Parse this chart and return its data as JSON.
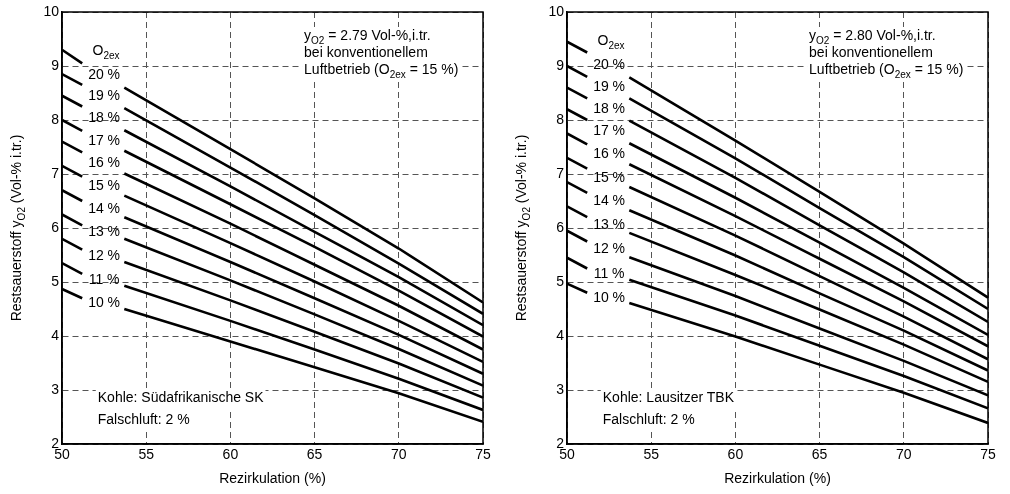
{
  "chart_data": [
    {
      "type": "line",
      "xlabel": "Rezirkulation (%)",
      "ylabel": "Restsauerstoff y$_{O2}$ (Vol-% i.tr.)",
      "x": [
        50,
        51.2,
        52.5,
        53.7,
        60,
        65,
        70,
        75
      ],
      "series": [
        {
          "name": "20 %",
          "color": "#000000",
          "values": [
            9.3,
            9.05,
            null,
            8.6,
            7.46,
            6.55,
            5.62,
            4.62
          ]
        },
        {
          "name": "19 %",
          "color": "#000000",
          "values": [
            8.85,
            8.65,
            null,
            8.22,
            7.12,
            6.24,
            5.34,
            4.41
          ]
        },
        {
          "name": "18 %",
          "color": "#000000",
          "values": [
            8.45,
            8.25,
            null,
            7.81,
            6.77,
            5.93,
            5.09,
            4.2
          ]
        },
        {
          "name": "17 %",
          "color": "#000000",
          "values": [
            8.0,
            7.8,
            null,
            7.43,
            6.44,
            5.65,
            4.84,
            3.99
          ]
        },
        {
          "name": "16 %",
          "color": "#000000",
          "values": [
            7.6,
            7.4,
            null,
            7.01,
            6.08,
            5.32,
            4.56,
            3.75
          ]
        },
        {
          "name": "15 %",
          "color": "#000000",
          "values": [
            7.15,
            6.95,
            null,
            6.6,
            5.72,
            5.01,
            4.28,
            3.52
          ]
        },
        {
          "name": "14 %",
          "color": "#000000",
          "values": [
            6.7,
            6.5,
            null,
            6.2,
            5.37,
            4.7,
            4.02,
            3.3
          ]
        },
        {
          "name": "13 %",
          "color": "#000000",
          "values": [
            6.25,
            6.05,
            null,
            5.8,
            5.03,
            4.4,
            3.76,
            3.08
          ]
        },
        {
          "name": "12 %",
          "color": "#000000",
          "values": [
            5.8,
            5.6,
            null,
            5.37,
            4.66,
            4.08,
            3.49,
            2.86
          ]
        },
        {
          "name": "11 %",
          "color": "#000000",
          "values": [
            5.35,
            5.15,
            null,
            4.93,
            4.28,
            3.75,
            3.21,
            2.63
          ]
        },
        {
          "name": "10 %",
          "color": "#000000",
          "values": [
            4.87,
            4.7,
            null,
            4.5,
            3.9,
            3.42,
            2.94,
            2.41
          ]
        }
      ],
      "xlim": [
        50,
        75
      ],
      "xticks": [
        50,
        55,
        60,
        65,
        70,
        75
      ],
      "ylim": [
        2,
        10
      ],
      "yticks": [
        2,
        3,
        4,
        5,
        6,
        7,
        8,
        9,
        10
      ],
      "grid": true,
      "legend": false,
      "marker": "none",
      "line_style": "solid",
      "annotations": [
        "O$_{2ex}$",
        "y$_{O2}$ = 2.79 Vol-%,i.tr.",
        "bei konventionellem",
        "Luftbetrieb (O$_{2ex}$ = 15 %)",
        "Kohle: Südafrikanische SK",
        "Falschluft: 2 %"
      ]
    },
    {
      "type": "line",
      "xlabel": "Rezirkulation (%)",
      "ylabel": "Restsauerstoff y$_{O2}$ (Vol-% i.tr.)",
      "x": [
        50,
        51.2,
        52.5,
        53.7,
        60,
        65,
        70,
        75
      ],
      "series": [
        {
          "name": "20 %",
          "color": "#000000",
          "values": [
            9.45,
            9.25,
            null,
            8.79,
            7.62,
            6.67,
            5.71,
            4.71
          ]
        },
        {
          "name": "19 %",
          "color": "#000000",
          "values": [
            9.0,
            8.8,
            null,
            8.4,
            7.29,
            6.37,
            5.46,
            4.5
          ]
        },
        {
          "name": "18 %",
          "color": "#000000",
          "values": [
            8.6,
            8.4,
            null,
            7.99,
            6.93,
            6.05,
            5.18,
            4.26
          ]
        },
        {
          "name": "17 %",
          "color": "#000000",
          "values": [
            8.2,
            8.0,
            null,
            7.57,
            6.56,
            5.73,
            4.89,
            4.02
          ]
        },
        {
          "name": "16 %",
          "color": "#000000",
          "values": [
            7.75,
            7.55,
            null,
            7.18,
            6.22,
            5.43,
            4.64,
            3.81
          ]
        },
        {
          "name": "15 %",
          "color": "#000000",
          "values": [
            7.3,
            7.1,
            null,
            6.76,
            5.86,
            5.11,
            4.36,
            3.57
          ]
        },
        {
          "name": "14 %",
          "color": "#000000",
          "values": [
            6.85,
            6.65,
            null,
            6.33,
            5.49,
            4.79,
            4.1,
            3.36
          ]
        },
        {
          "name": "13 %",
          "color": "#000000",
          "values": [
            6.4,
            6.2,
            null,
            5.91,
            5.13,
            4.49,
            3.84,
            3.15
          ]
        },
        {
          "name": "12 %",
          "color": "#000000",
          "values": [
            5.95,
            5.75,
            null,
            5.46,
            4.74,
            4.14,
            3.54,
            2.9
          ]
        },
        {
          "name": "11 %",
          "color": "#000000",
          "values": [
            5.45,
            5.25,
            null,
            5.04,
            4.38,
            3.82,
            3.26,
            2.66
          ]
        },
        {
          "name": "10 %",
          "color": "#000000",
          "values": [
            4.97,
            4.8,
            null,
            4.61,
            3.99,
            3.47,
            2.95,
            2.39
          ]
        }
      ],
      "xlim": [
        50,
        75
      ],
      "xticks": [
        50,
        55,
        60,
        65,
        70,
        75
      ],
      "ylim": [
        2,
        10
      ],
      "yticks": [
        2,
        3,
        4,
        5,
        6,
        7,
        8,
        9,
        10
      ],
      "grid": true,
      "legend": false,
      "marker": "none",
      "line_style": "solid",
      "annotations": [
        "O$_{2ex}$",
        "y$_{O2}$ = 2.80 Vol-%,i.tr.",
        "bei konventionellem",
        "Luftbetrieb (O$_{2ex}$ = 15 %)",
        "Kohle: Lausitzer TBK",
        "Falschluft: 2 %"
      ]
    }
  ]
}
